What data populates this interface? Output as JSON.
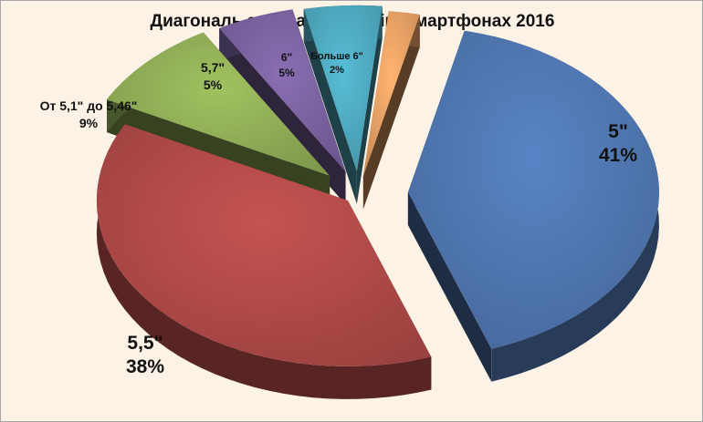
{
  "chart_data": {
    "type": "pie",
    "title": "Диагональ экрана в Dual Sim смартфонах 2016",
    "slices": [
      {
        "label": "5\"",
        "value": 41,
        "value_label": "41%",
        "color": "#4f76b0"
      },
      {
        "label": "5,5\"",
        "value": 38,
        "value_label": "38%",
        "color": "#b04a48"
      },
      {
        "label": "От 5,1\" до 5,46\"",
        "value": 9,
        "value_label": "9%",
        "color": "#90ad56"
      },
      {
        "label": "5,7\"",
        "value": 5,
        "value_label": "5%",
        "color": "#7a62a0"
      },
      {
        "label": "6\"",
        "value": 5,
        "value_label": "5%",
        "color": "#4ea9bf"
      },
      {
        "label": "Больше 6\"",
        "value": 2,
        "value_label": "2%",
        "color": "#e8a064"
      }
    ],
    "exploded": true,
    "style": "3d",
    "legend": "none"
  }
}
